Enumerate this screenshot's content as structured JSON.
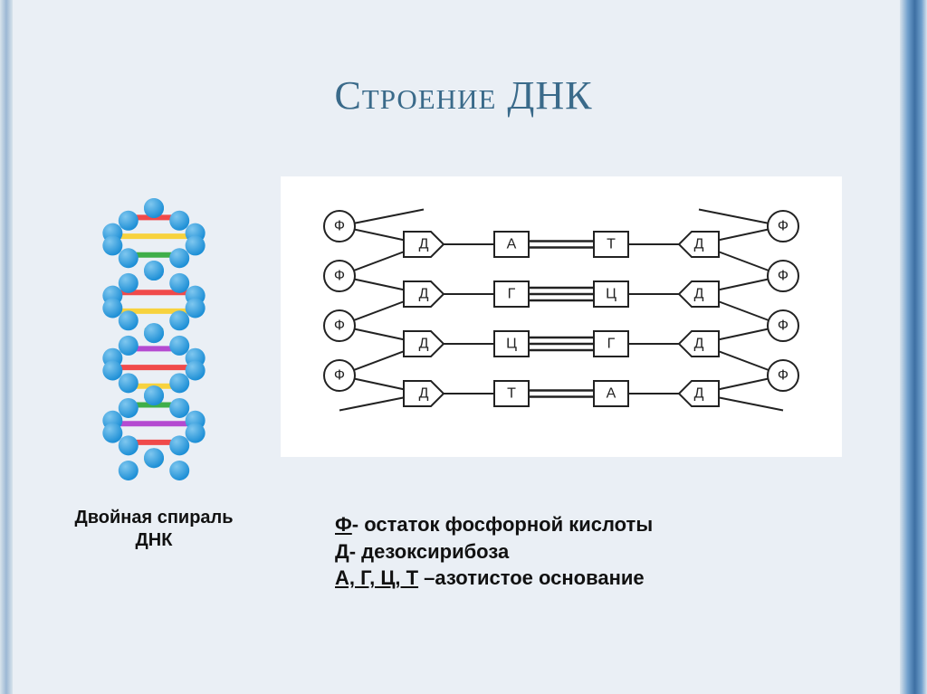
{
  "title": "Строение ДНК",
  "helix": {
    "caption": "Двойная спираль ДНК",
    "sphere_color": "#1d8fd6",
    "sphere_highlight": "#7fc7ef",
    "rung_colors": [
      "#f04a4a",
      "#f7d23e",
      "#3fae49",
      "#b44ad1",
      "#f04a4a",
      "#f7d23e",
      "#3fae49",
      "#b44ad1",
      "#f04a4a",
      "#f7d23e",
      "#3fae49",
      "#b44ad1",
      "#f04a4a",
      "#f7d23e"
    ]
  },
  "schema": {
    "rows": [
      {
        "leftBase": "А",
        "rightBase": "Т",
        "bonds": 2
      },
      {
        "leftBase": "Г",
        "rightBase": "Ц",
        "bonds": 3
      },
      {
        "leftBase": "Ц",
        "rightBase": "Г",
        "bonds": 3
      },
      {
        "leftBase": "Т",
        "rightBase": "А",
        "bonds": 2
      }
    ],
    "phosphate_label": "Ф",
    "sugar_label": "Д",
    "stroke": "#222222",
    "background": "#ffffff"
  },
  "legend": {
    "items": [
      {
        "key": "Ф",
        "text": "- остаток фосфорной кислоты"
      },
      {
        "key": "Д",
        "text": "- дезоксирибоза"
      },
      {
        "key": "А, Г, Ц, Т",
        "text": " –азотистое основание"
      }
    ]
  },
  "colors": {
    "slide_bg": "#eaeff5",
    "title": "#3a6a8a"
  }
}
